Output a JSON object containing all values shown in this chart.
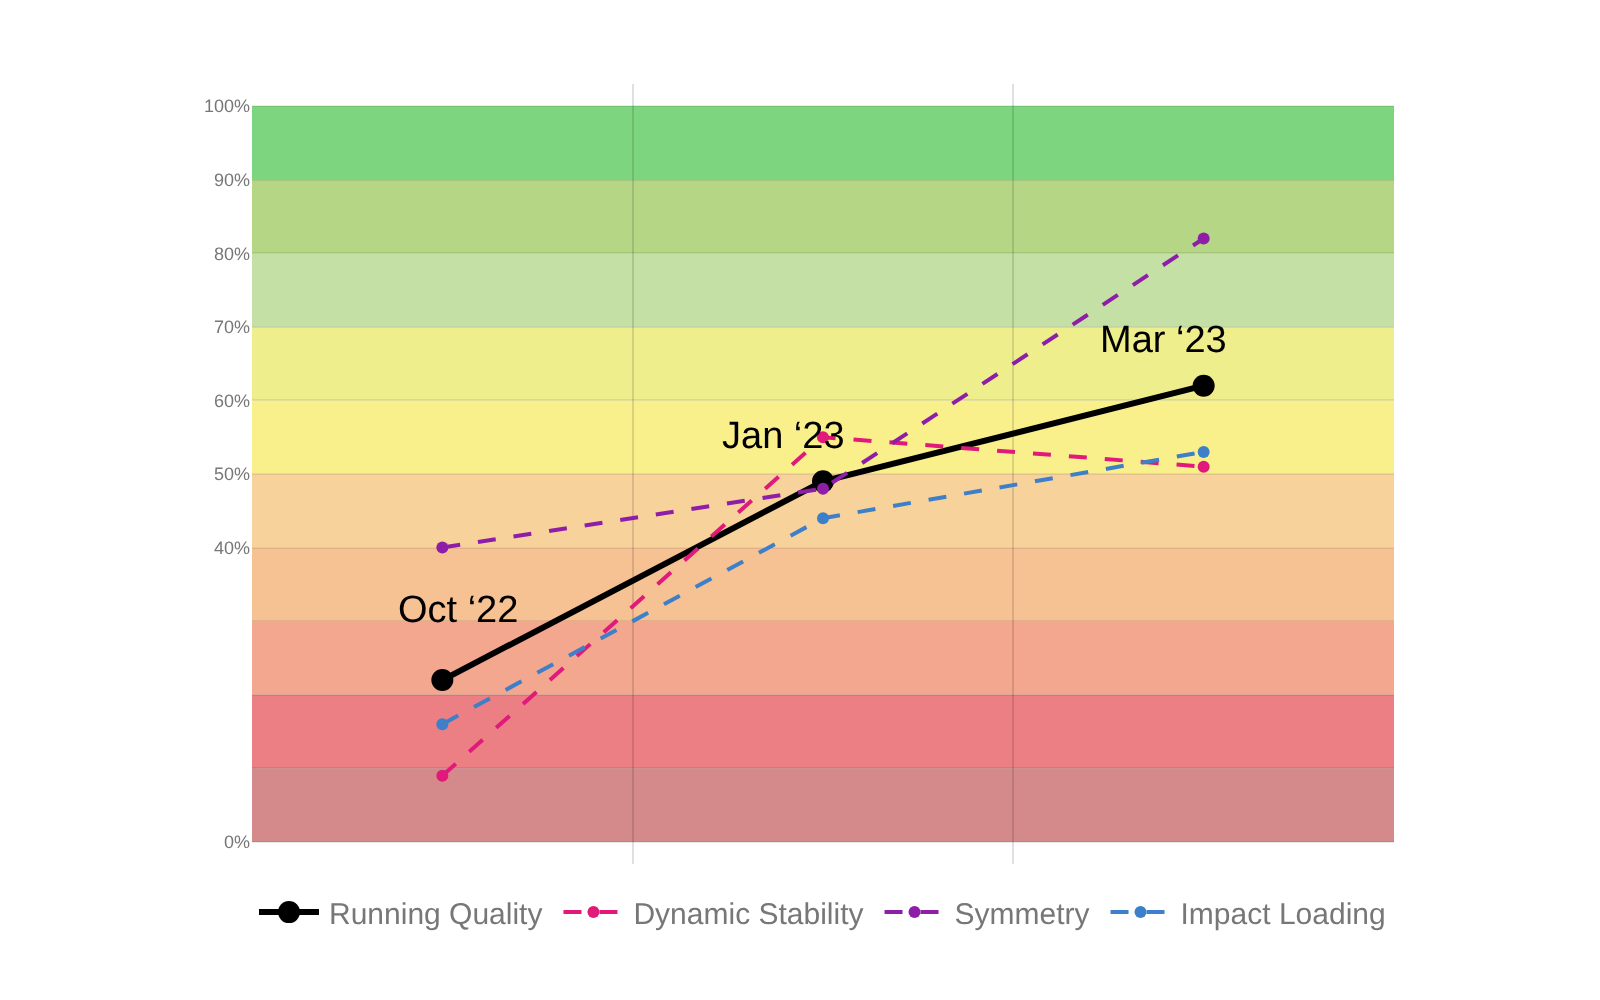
{
  "chart_data": {
    "type": "line",
    "categories": [
      null,
      null,
      null
    ],
    "series": [
      {
        "name": "Running Quality",
        "color": "#000000",
        "values": [
          22,
          49,
          62
        ],
        "line_style": "solid"
      },
      {
        "name": "Dynamic Stability",
        "color": "#e0197b",
        "values": [
          9,
          55,
          51
        ],
        "line_style": "dashed"
      },
      {
        "name": "Symmetry",
        "color": "#8e1ea8",
        "values": [
          40,
          48,
          82
        ],
        "line_style": "dashed"
      },
      {
        "name": "Impact Loading",
        "color": "#3d7fc8",
        "values": [
          16,
          44,
          53
        ],
        "line_style": "dashed"
      }
    ],
    "annotations": [
      "Oct ‘22",
      "Jan ‘23",
      "Mar ‘23"
    ],
    "ylim": [
      -3,
      103
    ],
    "yticks": [
      {
        "value": 0,
        "label": "0%"
      },
      {
        "value": 10,
        "label": null
      },
      {
        "value": 20,
        "label": null
      },
      {
        "value": 30,
        "label": null
      },
      {
        "value": 40,
        "label": "40%"
      },
      {
        "value": 50,
        "label": "50%"
      },
      {
        "value": 60,
        "label": "60%"
      },
      {
        "value": 70,
        "label": "70%"
      },
      {
        "value": 80,
        "label": "80%"
      },
      {
        "value": 90,
        "label": "90%"
      },
      {
        "value": 100,
        "label": "100%"
      }
    ],
    "bands": [
      {
        "axis": "y",
        "from": 0,
        "to": 10,
        "color": "#d48a8a"
      },
      {
        "axis": "y",
        "from": 10,
        "to": 20,
        "color": "#ec7f84"
      },
      {
        "axis": "y",
        "from": 20,
        "to": 30,
        "color": "#f2a78e"
      },
      {
        "axis": "y",
        "from": 30,
        "to": 40,
        "color": "#f6c193"
      },
      {
        "axis": "y",
        "from": 40,
        "to": 50,
        "color": "#f8d29b"
      },
      {
        "axis": "y",
        "from": 50,
        "to": 60,
        "color": "#f9f08c"
      },
      {
        "axis": "y",
        "from": 60,
        "to": 70,
        "color": "#eeee8c"
      },
      {
        "axis": "y",
        "from": 70,
        "to": 80,
        "color": "#c5e0a5"
      },
      {
        "axis": "y",
        "from": 80,
        "to": 90,
        "color": "#b4d685"
      },
      {
        "axis": "y",
        "from": 90,
        "to": 100,
        "color": "#7dd67f"
      }
    ],
    "grid": true,
    "legend": "bottom",
    "marker": "circle"
  }
}
